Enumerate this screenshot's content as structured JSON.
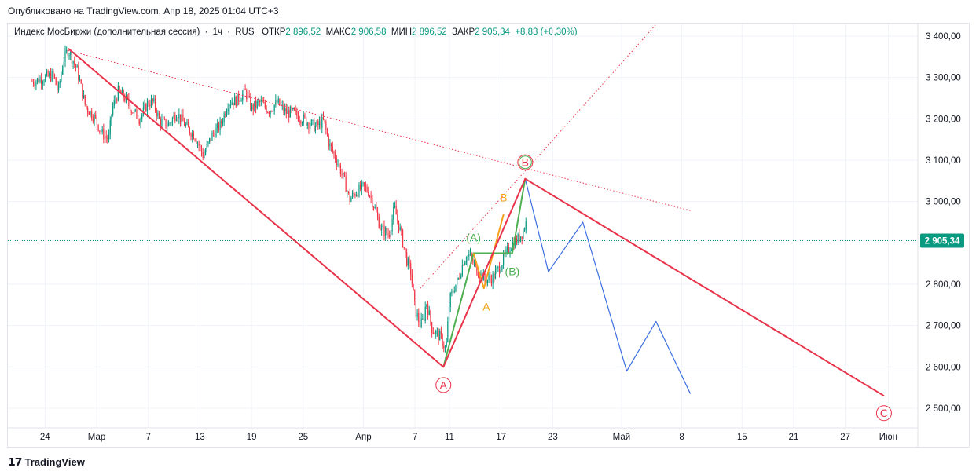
{
  "header": {
    "published": "Опубликовано на TradingView.com, Апр 18, 2025 01:04 UTC+3"
  },
  "legend": {
    "symbol": "Индекс МосБиржи (дополнительная сессия)",
    "interval": "1ч",
    "exchange": "RUS",
    "open_label": "ОТКР",
    "open": "2 896,52",
    "high_label": "МАКС",
    "high": "2 906,58",
    "low_label": "МИН",
    "low": "2 896,52",
    "close_label": "ЗАКР",
    "close": "2 905,34",
    "change": "+8,83 (+0,30%)"
  },
  "footer": {
    "brand": "TradingView"
  },
  "colors": {
    "up": "#089981",
    "down": "#f23645",
    "red": "#e8334a",
    "green": "#4caf50",
    "orange": "#f7a21b",
    "blue": "#3d6fe0",
    "grid": "#f0f3fa",
    "axis_text": "#131722"
  },
  "chart_data": {
    "type": "line",
    "y_ticks": [
      "3 400,00",
      "3 300,00",
      "3 200,00",
      "3 100,00",
      "3 000,00",
      "2 800,00",
      "2 700,00",
      "2 600,00",
      "2 500,00"
    ],
    "y_tick_values": [
      3400,
      3300,
      3200,
      3100,
      3000,
      2800,
      2700,
      2600,
      2500
    ],
    "ylim": [
      2465,
      3445
    ],
    "x_ticks": [
      "24",
      "Мар",
      "7",
      "13",
      "19",
      "25",
      "Апр",
      "7",
      "11",
      "17",
      "23",
      "Май",
      "8",
      "15",
      "21",
      "27",
      "Июн"
    ],
    "x_tick_days": [
      -6,
      0,
      6,
      12,
      18,
      24,
      31,
      37,
      41,
      47,
      53,
      61,
      68,
      75,
      81,
      87,
      92
    ],
    "last_price_label": "2 905,34",
    "last_price": 2905.34,
    "price_path": [
      [
        -7.5,
        3290
      ],
      [
        -6,
        3300
      ],
      [
        -5,
        3305
      ],
      [
        -4.5,
        3265
      ],
      [
        -3.8,
        3345
      ],
      [
        -3.3,
        3368
      ],
      [
        -2.3,
        3320
      ],
      [
        -1.3,
        3230
      ],
      [
        -0.3,
        3205
      ],
      [
        0.6,
        3165
      ],
      [
        1.4,
        3150
      ],
      [
        1.8,
        3225
      ],
      [
        2.5,
        3265
      ],
      [
        3.3,
        3250
      ],
      [
        4.1,
        3220
      ],
      [
        5,
        3200
      ],
      [
        6,
        3240
      ],
      [
        6.6,
        3240
      ],
      [
        7.3,
        3195
      ],
      [
        8.3,
        3185
      ],
      [
        9.3,
        3215
      ],
      [
        10.6,
        3175
      ],
      [
        11.4,
        3160
      ],
      [
        12.4,
        3110
      ],
      [
        13.4,
        3160
      ],
      [
        14.4,
        3185
      ],
      [
        15.3,
        3240
      ],
      [
        16.3,
        3245
      ],
      [
        17.3,
        3265
      ],
      [
        18,
        3225
      ],
      [
        19,
        3240
      ],
      [
        20,
        3220
      ],
      [
        21,
        3240
      ],
      [
        22,
        3215
      ],
      [
        22.8,
        3215
      ],
      [
        24.3,
        3195
      ],
      [
        25.4,
        3180
      ],
      [
        26.4,
        3195
      ],
      [
        27,
        3140
      ],
      [
        28,
        3095
      ],
      [
        28.7,
        3055
      ],
      [
        29.4,
        3005
      ],
      [
        30,
        3020
      ],
      [
        31,
        3035
      ],
      [
        31.6,
        3025
      ],
      [
        32.3,
        2985
      ],
      [
        33,
        2935
      ],
      [
        34,
        2920
      ],
      [
        34.6,
        2985
      ],
      [
        35.4,
        2920
      ],
      [
        36,
        2860
      ],
      [
        36.5,
        2830
      ],
      [
        37,
        2740
      ],
      [
        37.6,
        2700
      ],
      [
        38,
        2715
      ],
      [
        38.3,
        2760
      ],
      [
        39,
        2690
      ],
      [
        40,
        2670
      ],
      [
        40.6,
        2640
      ],
      [
        41,
        2760
      ],
      [
        41.5,
        2790
      ],
      [
        42,
        2810
      ],
      [
        42.7,
        2860
      ],
      [
        43.3,
        2870
      ],
      [
        44.3,
        2830
      ],
      [
        45.2,
        2810
      ],
      [
        46,
        2815
      ],
      [
        46.8,
        2840
      ],
      [
        47.5,
        2870
      ],
      [
        48,
        2890
      ],
      [
        48.4,
        2900
      ],
      [
        48.8,
        2905.34
      ],
      [
        49.5,
        2925
      ],
      [
        50,
        2955
      ]
    ],
    "trendline_resistance": {
      "points": [
        [
          -3.3,
          3365
        ],
        [
          69,
          2978
        ]
      ],
      "style": "dotted",
      "color": "#e8334a"
    },
    "trendline_channel": {
      "points": [
        [
          37.6,
          2790
        ],
        [
          65,
          3428
        ]
      ],
      "style": "dotted",
      "color": "#e8334a"
    },
    "wave_red": {
      "points": [
        [
          -3.3,
          3370
        ],
        [
          40.3,
          2600
        ],
        [
          49.8,
          3055
        ],
        [
          91.5,
          2530
        ]
      ],
      "labels": [
        "A",
        "B",
        "C"
      ]
    },
    "wave_green": {
      "points": [
        [
          40.3,
          2600
        ],
        [
          43.8,
          2875
        ],
        [
          48.3,
          2875
        ],
        [
          49.8,
          3055
        ]
      ],
      "labels": [
        "(A)",
        "(B)"
      ]
    },
    "wave_orange": {
      "points": [
        [
          43.8,
          2875
        ],
        [
          45,
          2790
        ],
        [
          47.3,
          2970
        ]
      ],
      "labels": [
        "A",
        "B"
      ]
    },
    "wave_blue": {
      "points": [
        [
          49.8,
          3055
        ],
        [
          52.5,
          2830
        ],
        [
          56.5,
          2950
        ],
        [
          61.6,
          2590
        ],
        [
          65,
          2710
        ],
        [
          69,
          2535
        ]
      ]
    }
  }
}
